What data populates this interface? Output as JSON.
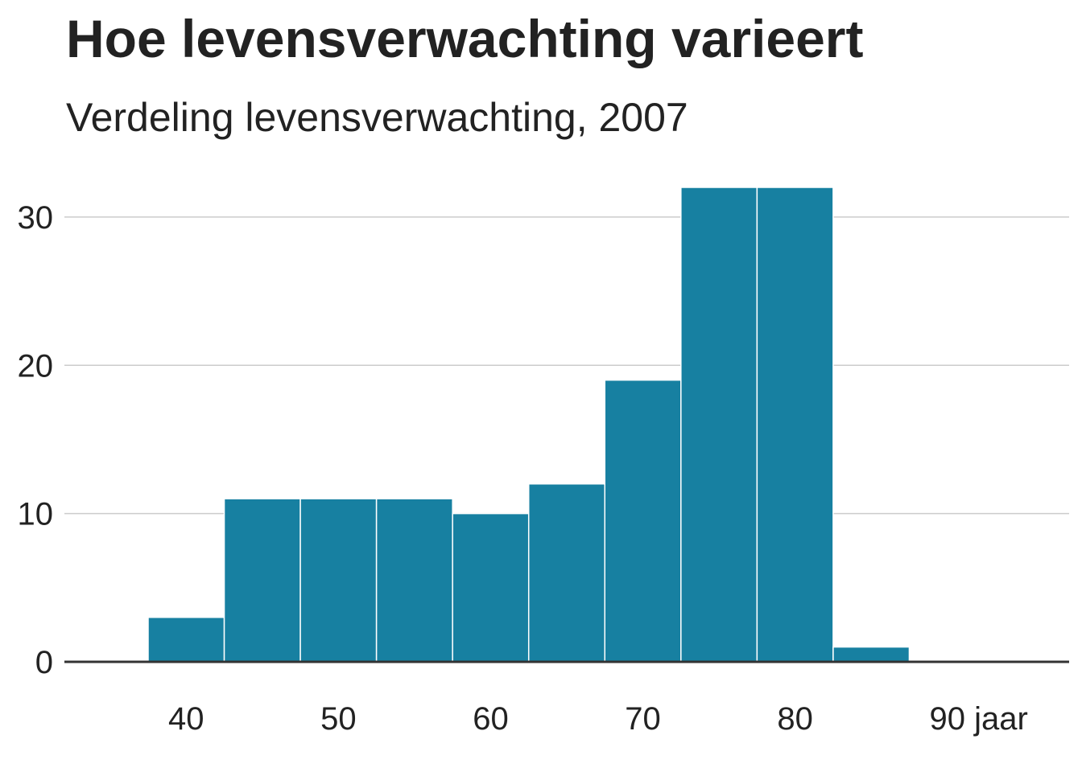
{
  "title": "Hoe levensverwachting varieert",
  "subtitle": "Verdeling levensverwachting, 2007",
  "chart_data": {
    "type": "bar",
    "title": "Hoe levensverwachting varieert",
    "subtitle": "Verdeling levensverwachting, 2007",
    "xlabel": "",
    "ylabel": "",
    "bins": [
      {
        "x0": 37.5,
        "x1": 42.5,
        "count": 3
      },
      {
        "x0": 42.5,
        "x1": 47.5,
        "count": 11
      },
      {
        "x0": 47.5,
        "x1": 52.5,
        "count": 11
      },
      {
        "x0": 52.5,
        "x1": 57.5,
        "count": 11
      },
      {
        "x0": 57.5,
        "x1": 62.5,
        "count": 10
      },
      {
        "x0": 62.5,
        "x1": 67.5,
        "count": 12
      },
      {
        "x0": 67.5,
        "x1": 72.5,
        "count": 19
      },
      {
        "x0": 72.5,
        "x1": 77.5,
        "count": 32
      },
      {
        "x0": 77.5,
        "x1": 82.5,
        "count": 32
      },
      {
        "x0": 82.5,
        "x1": 87.5,
        "count": 1
      }
    ],
    "xlim": [
      32,
      98
    ],
    "ylim": [
      0,
      32
    ],
    "x_ticks": [
      {
        "value": 40,
        "label": "40"
      },
      {
        "value": 50,
        "label": "50"
      },
      {
        "value": 60,
        "label": "60"
      },
      {
        "value": 70,
        "label": "70"
      },
      {
        "value": 80,
        "label": "80"
      },
      {
        "value": 90,
        "label": "90 jaar"
      }
    ],
    "y_ticks": [
      {
        "value": 0,
        "label": "0"
      },
      {
        "value": 10,
        "label": "10"
      },
      {
        "value": 20,
        "label": "20"
      },
      {
        "value": 30,
        "label": "30"
      }
    ],
    "grid": "horizontal",
    "legend": "none",
    "colors": {
      "bar": "#1780a1",
      "bar_edge": "#ffffff",
      "grid": "#cccccc",
      "baseline": "#333333",
      "text": "#222222"
    }
  }
}
